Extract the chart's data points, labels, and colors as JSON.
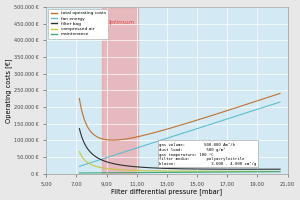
{
  "xlabel": "Filter differential pressure [mbar]",
  "ylabel": "Operating costs [€]",
  "xlim": [
    5.0,
    21.0
  ],
  "ylim": [
    0,
    500000
  ],
  "xticks": [
    5.0,
    7.0,
    9.0,
    11.0,
    13.0,
    15.0,
    17.0,
    19.0,
    21.0
  ],
  "yticks": [
    0,
    50000,
    100000,
    150000,
    200000,
    250000,
    300000,
    350000,
    400000,
    450000,
    500000
  ],
  "ytick_labels": [
    "0 €",
    "50.000 €",
    "100.000 €",
    "150.000 €",
    "200.000 €",
    "250.000 €",
    "300.000 €",
    "350.000 €",
    "400.000 €",
    "450.000 €",
    "500.000 €"
  ],
  "xtick_labels": [
    "5,00",
    "7,00",
    "9,00",
    "11,00",
    "13,00",
    "15,00",
    "17,00",
    "19,00",
    "21,00"
  ],
  "optimum_xmin": 8.7,
  "optimum_xmax": 11.1,
  "bg_color": "#d3eaf5",
  "fig_bg_color": "#e8e8e8",
  "optimum_color": "#f0a0a0",
  "optimum_alpha": 0.65,
  "optimum_label": "Optimum",
  "optimum_label_color": "#dd4444",
  "legend_entries": [
    "total operating costs",
    "fan energy",
    "filter bag",
    "compressed air",
    "maintenance"
  ],
  "line_colors": [
    "#c07030",
    "#60bcd0",
    "#303030",
    "#c8c840",
    "#40a878"
  ],
  "infobox": {
    "gas_volume": "500.000 Am³/h",
    "dust_load": "500 g/m³",
    "gas_temperature": "100 °C",
    "filter_media": "polyacrylnitrile",
    "blaine": "3.600 - 4.000 cm²/g"
  }
}
